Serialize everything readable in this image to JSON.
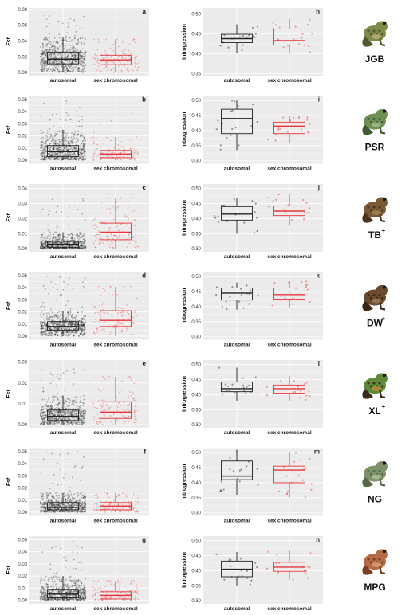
{
  "colors": {
    "panel_bg": "#ebebeb",
    "grid": "#ffffff",
    "autosomal": "#222222",
    "sex_chromosomal": "#e8343a"
  },
  "icons": [
    "frog-photo-jgb",
    "frog-photo-psr",
    "frog-photo-tb",
    "frog-photo-dw",
    "frog-photo-xl",
    "frog-photo-ng",
    "frog-photo-mpg"
  ],
  "chart_data": [
    {
      "type": "box",
      "panel": "a",
      "ylabel": "Fst",
      "categories": [
        "autosomal",
        "sex chromosomal"
      ],
      "yticks": [
        "0.00",
        "0.02",
        "0.04",
        "0.06",
        "0.08"
      ],
      "ylim": [
        -0.004,
        0.082
      ],
      "series": [
        {
          "name": "autosomal",
          "n_points": 700,
          "q1": 0.011,
          "median": 0.017,
          "q3": 0.026,
          "whisker_low": 0.0,
          "whisker_high": 0.045,
          "max": 0.075
        },
        {
          "name": "sex chromosomal",
          "n_points": 130,
          "q1": 0.01,
          "median": 0.016,
          "q3": 0.022,
          "whisker_low": 0.0,
          "whisker_high": 0.042,
          "max": 0.042
        }
      ]
    },
    {
      "type": "box",
      "panel": "h",
      "ylabel": "Introgression",
      "categories": [
        "autosomal",
        "sex chromosomal"
      ],
      "yticks": [
        "0.35",
        "0.40",
        "0.45",
        "0.50"
      ],
      "ylim": [
        0.345,
        0.515
      ],
      "series": [
        {
          "name": "autosomal",
          "n_points": 18,
          "q1": 0.428,
          "median": 0.438,
          "q3": 0.449,
          "whisker_low": 0.402,
          "whisker_high": 0.474
        },
        {
          "name": "sex chromosomal",
          "n_points": 18,
          "q1": 0.422,
          "median": 0.433,
          "q3": 0.462,
          "whisker_low": 0.4,
          "whisker_high": 0.488
        }
      ]
    },
    {
      "type": "box",
      "panel": "b",
      "ylabel": "Fst",
      "categories": [
        "autosomal",
        "sex chromosomal"
      ],
      "yticks": [
        "0.00",
        "0.01",
        "0.02",
        "0.03",
        "0.04",
        "0.05"
      ],
      "ylim": [
        -0.003,
        0.053
      ],
      "series": [
        {
          "name": "autosomal",
          "n_points": 700,
          "q1": 0.003,
          "median": 0.007,
          "q3": 0.012,
          "whisker_low": 0.0,
          "whisker_high": 0.025,
          "max": 0.05
        },
        {
          "name": "sex chromosomal",
          "n_points": 130,
          "q1": 0.002,
          "median": 0.005,
          "q3": 0.008,
          "whisker_low": 0.0,
          "whisker_high": 0.019,
          "max": 0.041
        }
      ]
    },
    {
      "type": "box",
      "panel": "i",
      "ylabel": "Introgression",
      "categories": [
        "autosomal",
        "sex chromosomal"
      ],
      "yticks": [
        "0.30",
        "0.35",
        "0.40",
        "0.45",
        "0.50"
      ],
      "ylim": [
        0.29,
        0.515
      ],
      "series": [
        {
          "name": "autosomal",
          "n_points": 18,
          "q1": 0.39,
          "median": 0.44,
          "q3": 0.471,
          "whisker_low": 0.335,
          "whisker_high": 0.5
        },
        {
          "name": "sex chromosomal",
          "n_points": 18,
          "q1": 0.39,
          "median": 0.415,
          "q3": 0.428,
          "whisker_low": 0.36,
          "whisker_high": 0.45
        }
      ]
    },
    {
      "type": "box",
      "panel": "c",
      "ylabel": "Fst",
      "categories": [
        "autosomal",
        "sex chromosomal"
      ],
      "yticks": [
        "0.00",
        "0.01",
        "0.02",
        "0.03",
        "0.04"
      ],
      "ylim": [
        -0.002,
        0.043
      ],
      "series": [
        {
          "name": "autosomal",
          "n_points": 700,
          "q1": 0.001,
          "median": 0.003,
          "q3": 0.005,
          "whisker_low": 0.0,
          "whisker_high": 0.011,
          "max": 0.036
        },
        {
          "name": "sex chromosomal",
          "n_points": 130,
          "q1": 0.006,
          "median": 0.011,
          "q3": 0.017,
          "whisker_low": 0.0,
          "whisker_high": 0.034,
          "max": 0.034
        }
      ]
    },
    {
      "type": "box",
      "panel": "j",
      "ylabel": "Introgression",
      "categories": [
        "autosomal",
        "sex chromosomal"
      ],
      "yticks": [
        "0.30",
        "0.35",
        "0.40",
        "0.45",
        "0.50"
      ],
      "ylim": [
        0.29,
        0.515
      ],
      "series": [
        {
          "name": "autosomal",
          "n_points": 18,
          "q1": 0.395,
          "median": 0.415,
          "q3": 0.44,
          "whisker_low": 0.35,
          "whisker_high": 0.47
        },
        {
          "name": "sex chromosomal",
          "n_points": 18,
          "q1": 0.41,
          "median": 0.425,
          "q3": 0.442,
          "whisker_low": 0.375,
          "whisker_high": 0.48
        }
      ]
    },
    {
      "type": "box",
      "panel": "d",
      "ylabel": "Fst",
      "categories": [
        "autosomal",
        "sex chromosomal"
      ],
      "yticks": [
        "0.00",
        "0.01",
        "0.02",
        "0.03",
        "0.04",
        "0.05"
      ],
      "ylim": [
        -0.003,
        0.053
      ],
      "series": [
        {
          "name": "autosomal",
          "n_points": 700,
          "q1": 0.005,
          "median": 0.008,
          "q3": 0.012,
          "whisker_low": 0.0,
          "whisker_high": 0.021,
          "max": 0.05
        },
        {
          "name": "sex chromosomal",
          "n_points": 130,
          "q1": 0.008,
          "median": 0.013,
          "q3": 0.021,
          "whisker_low": 0.0,
          "whisker_high": 0.041,
          "max": 0.041
        }
      ]
    },
    {
      "type": "box",
      "panel": "k",
      "ylabel": "Introgression",
      "categories": [
        "autosomal",
        "sex chromosomal"
      ],
      "yticks": [
        "0.30",
        "0.35",
        "0.40",
        "0.45",
        "0.50"
      ],
      "ylim": [
        0.29,
        0.515
      ],
      "series": [
        {
          "name": "autosomal",
          "n_points": 18,
          "q1": 0.422,
          "median": 0.445,
          "q3": 0.462,
          "whisker_low": 0.39,
          "whisker_high": 0.48
        },
        {
          "name": "sex chromosomal",
          "n_points": 18,
          "q1": 0.425,
          "median": 0.44,
          "q3": 0.462,
          "whisker_low": 0.395,
          "whisker_high": 0.485
        }
      ]
    },
    {
      "type": "box",
      "panel": "e",
      "ylabel": "Fst",
      "categories": [
        "autosomal",
        "sex chromosomal"
      ],
      "yticks": [
        "0.00",
        "0.01",
        "0.02",
        "0.03"
      ],
      "ylim": [
        -0.0015,
        0.031
      ],
      "series": [
        {
          "name": "autosomal",
          "n_points": 700,
          "q1": 0.002,
          "median": 0.004,
          "q3": 0.007,
          "whisker_low": 0.0,
          "whisker_high": 0.014,
          "max": 0.027
        },
        {
          "name": "sex chromosomal",
          "n_points": 130,
          "q1": 0.003,
          "median": 0.006,
          "q3": 0.011,
          "whisker_low": 0.0,
          "whisker_high": 0.023,
          "max": 0.023
        }
      ]
    },
    {
      "type": "box",
      "panel": "l",
      "ylabel": "Introgression",
      "categories": [
        "autosomal",
        "sex chromosomal"
      ],
      "yticks": [
        "0.30",
        "0.35",
        "0.40",
        "0.45",
        "0.50"
      ],
      "ylim": [
        0.29,
        0.515
      ],
      "series": [
        {
          "name": "autosomal",
          "n_points": 18,
          "q1": 0.41,
          "median": 0.42,
          "q3": 0.442,
          "whisker_low": 0.38,
          "whisker_high": 0.49
        },
        {
          "name": "sex chromosomal",
          "n_points": 18,
          "q1": 0.405,
          "median": 0.42,
          "q3": 0.432,
          "whisker_low": 0.38,
          "whisker_high": 0.462
        }
      ]
    },
    {
      "type": "box",
      "panel": "f",
      "ylabel": "Fst",
      "categories": [
        "autosomal",
        "sex chromosomal"
      ],
      "yticks": [
        "0.00",
        "0.01",
        "0.02",
        "0.03",
        "0.04",
        "0.05"
      ],
      "ylim": [
        -0.003,
        0.053
      ],
      "series": [
        {
          "name": "autosomal",
          "n_points": 700,
          "q1": 0.002,
          "median": 0.004,
          "q3": 0.008,
          "whisker_low": 0.0,
          "whisker_high": 0.016,
          "max": 0.05
        },
        {
          "name": "sex chromosomal",
          "n_points": 130,
          "q1": 0.002,
          "median": 0.005,
          "q3": 0.008,
          "whisker_low": 0.0,
          "whisker_high": 0.016,
          "max": 0.016
        }
      ]
    },
    {
      "type": "box",
      "panel": "m",
      "ylabel": "Introgression",
      "categories": [
        "autosomal",
        "sex chromosomal"
      ],
      "yticks": [
        "0.30",
        "0.35",
        "0.40",
        "0.45",
        "0.50"
      ],
      "ylim": [
        0.29,
        0.515
      ],
      "series": [
        {
          "name": "autosomal",
          "n_points": 18,
          "q1": 0.41,
          "median": 0.422,
          "q3": 0.472,
          "whisker_low": 0.36,
          "whisker_high": 0.51
        },
        {
          "name": "sex chromosomal",
          "n_points": 18,
          "q1": 0.4,
          "median": 0.442,
          "q3": 0.455,
          "whisker_low": 0.35,
          "whisker_high": 0.5
        }
      ]
    },
    {
      "type": "box",
      "panel": "g",
      "ylabel": "Fst",
      "categories": [
        "autosomal",
        "sex chromosomal"
      ],
      "yticks": [
        "0.00",
        "0.01",
        "0.02",
        "0.03",
        "0.04",
        "0.05"
      ],
      "ylim": [
        -0.003,
        0.053
      ],
      "series": [
        {
          "name": "autosomal",
          "n_points": 700,
          "q1": 0.002,
          "median": 0.005,
          "q3": 0.009,
          "whisker_low": 0.0,
          "whisker_high": 0.02,
          "max": 0.049
        },
        {
          "name": "sex chromosomal",
          "n_points": 130,
          "q1": 0.001,
          "median": 0.004,
          "q3": 0.007,
          "whisker_low": 0.0,
          "whisker_high": 0.016,
          "max": 0.016
        }
      ]
    },
    {
      "type": "box",
      "panel": "n",
      "ylabel": "Introgression",
      "categories": [
        "autosomal",
        "sex chromosomal"
      ],
      "yticks": [
        "0.30",
        "0.35",
        "0.40",
        "0.45",
        "0.50"
      ],
      "ylim": [
        0.29,
        0.515
      ],
      "series": [
        {
          "name": "autosomal",
          "n_points": 18,
          "q1": 0.38,
          "median": 0.405,
          "q3": 0.432,
          "whisker_low": 0.35,
          "whisker_high": 0.462
        },
        {
          "name": "sex chromosomal",
          "n_points": 18,
          "q1": 0.398,
          "median": 0.412,
          "q3": 0.428,
          "whisker_low": 0.37,
          "whisker_high": 0.47
        }
      ]
    }
  ],
  "species": [
    {
      "label": "JGB",
      "sup": ""
    },
    {
      "label": "PSR",
      "sup": ""
    },
    {
      "label": "TB",
      "sup": "+"
    },
    {
      "label": "DW",
      "sup": "+"
    },
    {
      "label": "XL",
      "sup": "+"
    },
    {
      "label": "NG",
      "sup": ""
    },
    {
      "label": "MPG",
      "sup": ""
    }
  ]
}
